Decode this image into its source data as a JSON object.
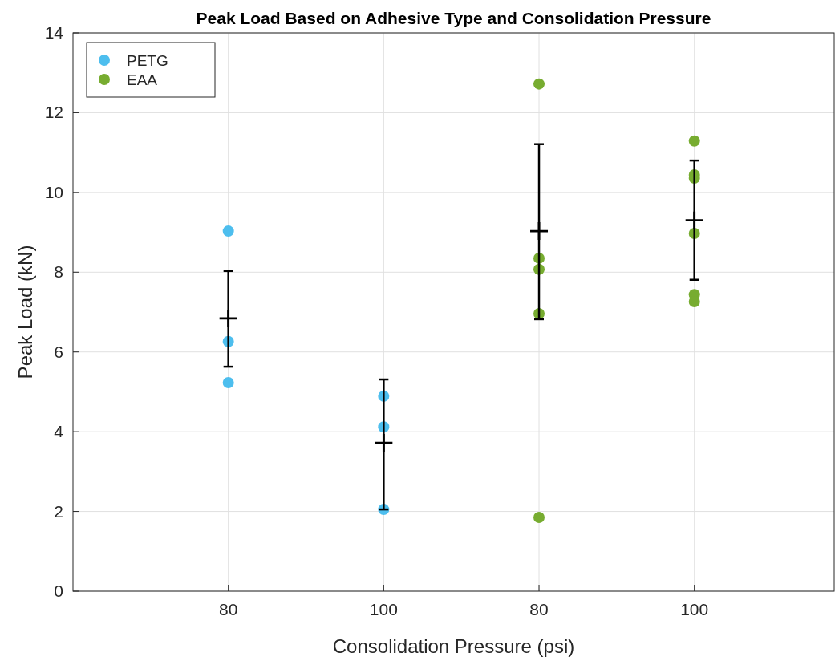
{
  "chart_data": {
    "type": "scatter",
    "title": "Peak Load Based on Adhesive Type and Consolidation Pressure",
    "xlabel": "Consolidation Pressure (psi)",
    "ylabel": "Peak Load (kN)",
    "categories": [
      "80",
      "100",
      "80",
      "100"
    ],
    "ylim": [
      0,
      14
    ],
    "yticks": [
      0,
      2,
      4,
      6,
      8,
      10,
      12,
      14
    ],
    "grid": true,
    "legend": "top left",
    "marker": "circle",
    "series": [
      {
        "name": "PETG",
        "color": "#4dbeee",
        "values": [
          9.03,
          4.89,
          null,
          null
        ]
      },
      {
        "color": "#4dbeee",
        "values": [
          6.26,
          4.12,
          null,
          null
        ]
      },
      {
        "color": "#4dbeee",
        "values": [
          5.23,
          2.05,
          null,
          null
        ]
      },
      {
        "name": "EAA",
        "color": "#77ac30",
        "values": [
          null,
          null,
          12.72,
          11.29
        ]
      },
      {
        "color": "#77ac30",
        "values": [
          null,
          null,
          8.35,
          10.44
        ]
      },
      {
        "color": "#77ac30",
        "values": [
          null,
          null,
          8.07,
          10.36
        ]
      },
      {
        "color": "#77ac30",
        "values": [
          null,
          null,
          6.96,
          8.97
        ]
      },
      {
        "color": "#77ac30",
        "values": [
          null,
          null,
          1.85,
          7.44
        ]
      },
      {
        "color": "#77ac30",
        "values": [
          null,
          null,
          null,
          7.26
        ]
      },
      {
        "color": "#000000",
        "marker": "cross",
        "values": [
          6.84,
          3.72,
          9.03,
          9.3
        ],
        "errors": [
          [
            5.63,
            8.03
          ],
          [
            2.05,
            5.31
          ],
          [
            6.82,
            11.21
          ],
          [
            7.81,
            10.8
          ]
        ]
      }
    ]
  }
}
